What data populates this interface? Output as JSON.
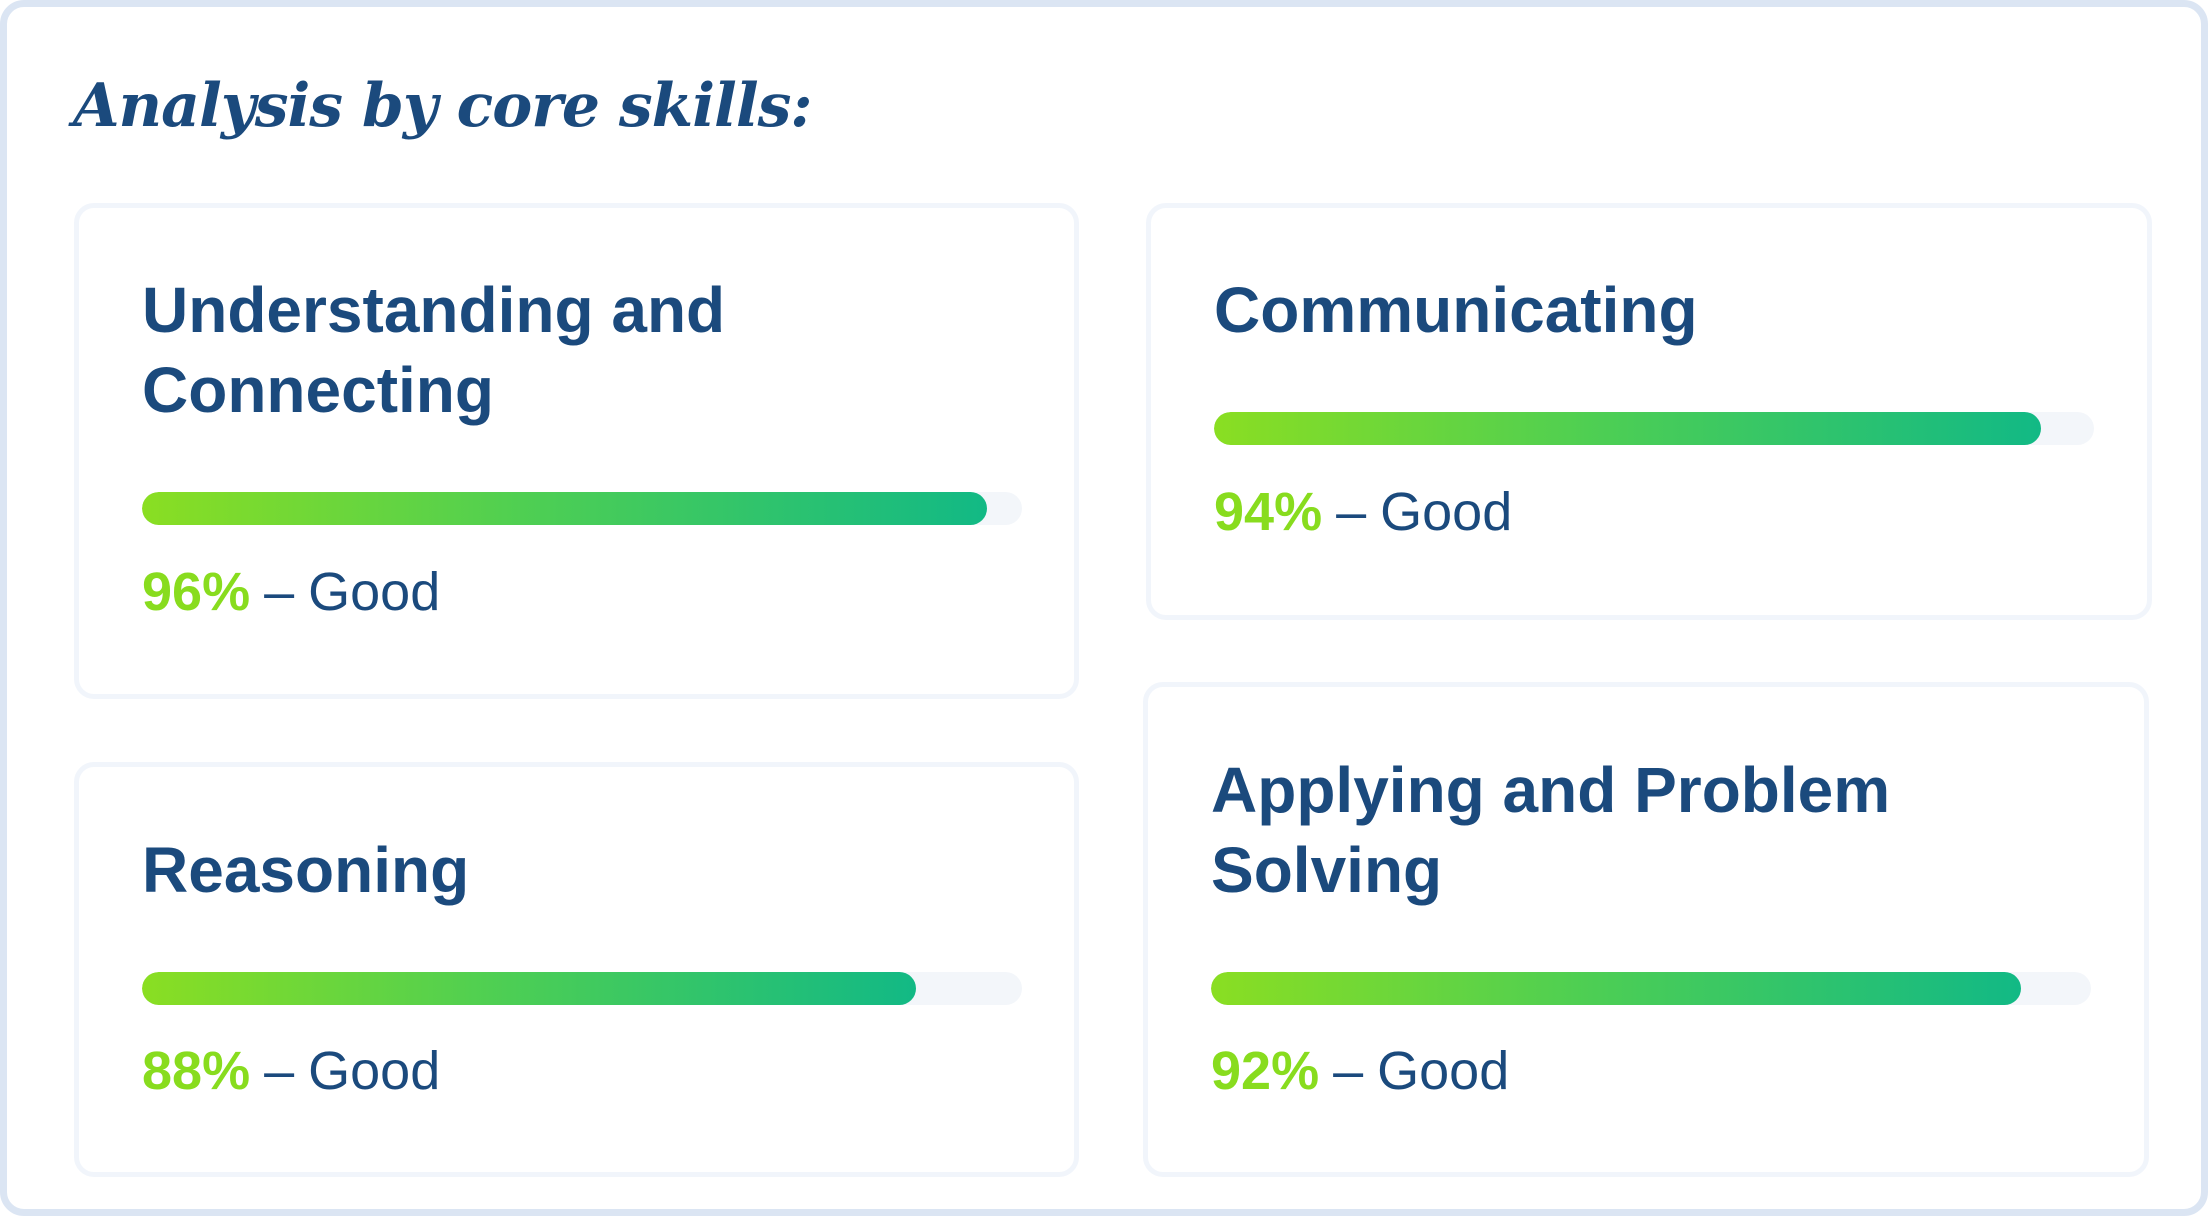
{
  "title": "Analysis by core skills:",
  "colors": {
    "heading": "#1b4a7d",
    "percent": "#88dc1e",
    "bar_start": "#8ade22",
    "bar_end": "#12b985",
    "track": "#f3f6fa",
    "frame_border": "#dbe5f3"
  },
  "separator": "–",
  "skills": [
    {
      "name_line1": "Understanding and",
      "name_line2": "Connecting",
      "percent": 96,
      "percent_label": "96%",
      "rating": "Good"
    },
    {
      "name_line1": "Communicating",
      "name_line2": "",
      "percent": 94,
      "percent_label": "94%",
      "rating": "Good"
    },
    {
      "name_line1": "Reasoning",
      "name_line2": "",
      "percent": 88,
      "percent_label": "88%",
      "rating": "Good"
    },
    {
      "name_line1": "Applying and Problem",
      "name_line2": "Solving",
      "percent": 92,
      "percent_label": "92%",
      "rating": "Good"
    }
  ]
}
